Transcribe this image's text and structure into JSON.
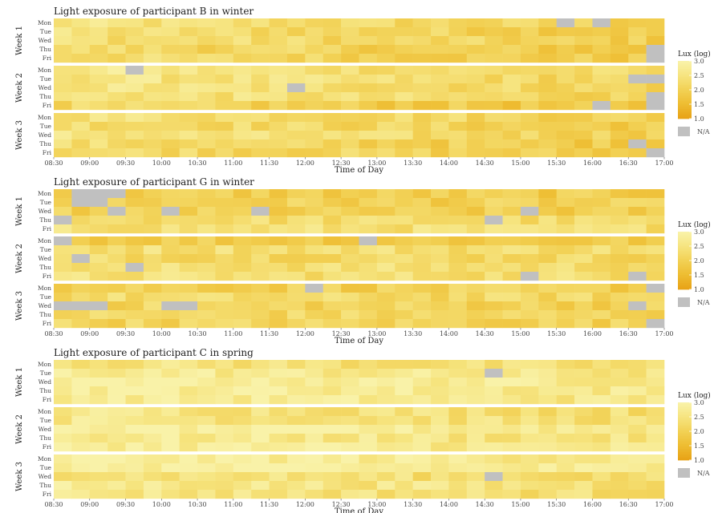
{
  "chart_data": [
    {
      "type": "heatmap",
      "title": "Light exposure of participant B in winter",
      "xlabel": "Time of Day",
      "x_ticks": [
        "08:30",
        "09:00",
        "09:30",
        "10:00",
        "10:30",
        "11:00",
        "11:30",
        "12:00",
        "12:30",
        "13:00",
        "13:30",
        "14:00",
        "14:30",
        "15:00",
        "15:30",
        "16:00",
        "16:30",
        "17:00"
      ],
      "weeks": [
        "Week 1",
        "Week 2",
        "Week 3"
      ],
      "days": [
        "Mon",
        "Tue",
        "Wed",
        "Thu",
        "Fri"
      ],
      "legend": {
        "title": "Lux (log)",
        "ticks": [
          "3.0",
          "2.5",
          "2.0",
          "1.5",
          "1.0"
        ],
        "na_label": "N/A"
      },
      "value_range": [
        1.0,
        3.0
      ],
      "typical_am": 2.4,
      "typical_pm": 1.9,
      "na_cells": [
        {
          "week": 0,
          "day": 0,
          "from": "15:30",
          "to": "15:45"
        },
        {
          "week": 0,
          "day": 0,
          "from": "16:00",
          "to": "16:15"
        },
        {
          "week": 0,
          "day": 3,
          "from": "16:45",
          "to": "17:00"
        },
        {
          "week": 0,
          "day": 4,
          "from": "16:45",
          "to": "17:00"
        },
        {
          "week": 1,
          "day": 0,
          "from": "09:30",
          "to": "09:45"
        },
        {
          "week": 1,
          "day": 1,
          "from": "16:30",
          "to": "17:00"
        },
        {
          "week": 1,
          "day": 2,
          "from": "11:45",
          "to": "12:00"
        },
        {
          "week": 1,
          "day": 3,
          "from": "16:45",
          "to": "17:00"
        },
        {
          "week": 1,
          "day": 4,
          "from": "16:00",
          "to": "16:15"
        },
        {
          "week": 1,
          "day": 4,
          "from": "16:45",
          "to": "17:00"
        },
        {
          "week": 2,
          "day": 3,
          "from": "16:30",
          "to": "16:45"
        },
        {
          "week": 2,
          "day": 4,
          "from": "16:45",
          "to": "17:00"
        }
      ]
    },
    {
      "type": "heatmap",
      "title": "Light exposure of participant G in winter",
      "xlabel": "Time of Day",
      "x_ticks": [
        "08:30",
        "09:00",
        "09:30",
        "10:00",
        "10:30",
        "11:00",
        "11:30",
        "12:00",
        "12:30",
        "13:00",
        "13:30",
        "14:00",
        "14:30",
        "15:00",
        "15:30",
        "16:00",
        "16:30",
        "17:00"
      ],
      "weeks": [
        "Week 1",
        "Week 2",
        "Week 3"
      ],
      "days": [
        "Mon",
        "Tue",
        "Wed",
        "Thu",
        "Fri"
      ],
      "legend": {
        "title": "Lux (log)",
        "ticks": [
          "3.0",
          "2.5",
          "2.0",
          "1.5",
          "1.0"
        ],
        "na_label": "N/A"
      },
      "value_range": [
        1.0,
        3.0
      ],
      "typical_am": 2.2,
      "typical_pm": 2.1,
      "na_cells": [
        {
          "week": 0,
          "day": 0,
          "from": "08:45",
          "to": "09:30"
        },
        {
          "week": 0,
          "day": 1,
          "from": "08:45",
          "to": "09:15"
        },
        {
          "week": 0,
          "day": 2,
          "from": "09:15",
          "to": "09:30"
        },
        {
          "week": 0,
          "day": 2,
          "from": "10:00",
          "to": "10:15"
        },
        {
          "week": 0,
          "day": 2,
          "from": "11:15",
          "to": "11:30"
        },
        {
          "week": 0,
          "day": 2,
          "from": "15:00",
          "to": "15:15"
        },
        {
          "week": 0,
          "day": 3,
          "from": "08:30",
          "to": "08:45"
        },
        {
          "week": 0,
          "day": 3,
          "from": "14:30",
          "to": "14:45"
        },
        {
          "week": 1,
          "day": 0,
          "from": "08:30",
          "to": "08:45"
        },
        {
          "week": 1,
          "day": 0,
          "from": "12:45",
          "to": "13:00"
        },
        {
          "week": 1,
          "day": 2,
          "from": "08:45",
          "to": "09:00"
        },
        {
          "week": 1,
          "day": 3,
          "from": "09:30",
          "to": "09:45"
        },
        {
          "week": 1,
          "day": 4,
          "from": "15:00",
          "to": "15:15"
        },
        {
          "week": 1,
          "day": 4,
          "from": "16:30",
          "to": "16:45"
        },
        {
          "week": 2,
          "day": 0,
          "from": "12:00",
          "to": "12:15"
        },
        {
          "week": 2,
          "day": 0,
          "from": "16:45",
          "to": "17:00"
        },
        {
          "week": 2,
          "day": 2,
          "from": "08:30",
          "to": "09:15"
        },
        {
          "week": 2,
          "day": 2,
          "from": "10:00",
          "to": "10:30"
        },
        {
          "week": 2,
          "day": 2,
          "from": "16:30",
          "to": "16:45"
        },
        {
          "week": 2,
          "day": 4,
          "from": "16:45",
          "to": "17:00"
        }
      ]
    },
    {
      "type": "heatmap",
      "title": "Light exposure of participant C in spring",
      "xlabel": "Time of Day",
      "x_ticks": [
        "08:30",
        "09:00",
        "09:30",
        "10:00",
        "10:30",
        "11:00",
        "11:30",
        "12:00",
        "12:30",
        "13:00",
        "13:30",
        "14:00",
        "14:30",
        "15:00",
        "15:30",
        "16:00",
        "16:30",
        "17:00"
      ],
      "weeks": [
        "Week 1",
        "Week 2",
        "Week 3"
      ],
      "days": [
        "Mon",
        "Tue",
        "Wed",
        "Thu",
        "Fri"
      ],
      "legend": {
        "title": "Lux (log)",
        "ticks": [
          "3.0",
          "2.5",
          "2.0",
          "1.5",
          "1.0"
        ],
        "na_label": "N/A"
      },
      "value_range": [
        1.0,
        3.0
      ],
      "typical_am": 2.8,
      "typical_pm": 2.5,
      "na_cells": [
        {
          "week": 0,
          "day": 1,
          "from": "14:30",
          "to": "14:45"
        },
        {
          "week": 2,
          "day": 2,
          "from": "14:30",
          "to": "14:45"
        }
      ]
    }
  ],
  "colors": {
    "scale": [
      "#e8a317",
      "#eebd32",
      "#f2d155",
      "#f6e47f",
      "#f9f2a8"
    ],
    "na": "#c0c0c0"
  }
}
